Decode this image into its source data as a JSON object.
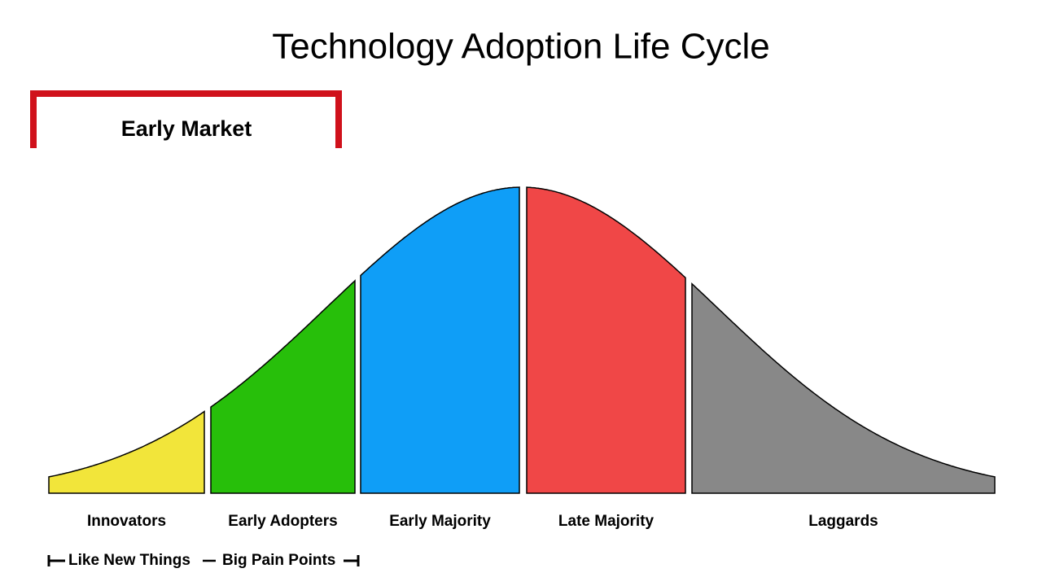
{
  "title": "Technology Adoption Life Cycle",
  "bracket": {
    "label": "Early Market"
  },
  "segments": [
    {
      "label": "Innovators"
    },
    {
      "label": "Early Adopters"
    },
    {
      "label": "Early Majority"
    },
    {
      "label": "Late Majority"
    },
    {
      "label": "Laggards"
    }
  ],
  "annotation": {
    "left": "Like New Things",
    "right": "Big Pain Points"
  }
}
